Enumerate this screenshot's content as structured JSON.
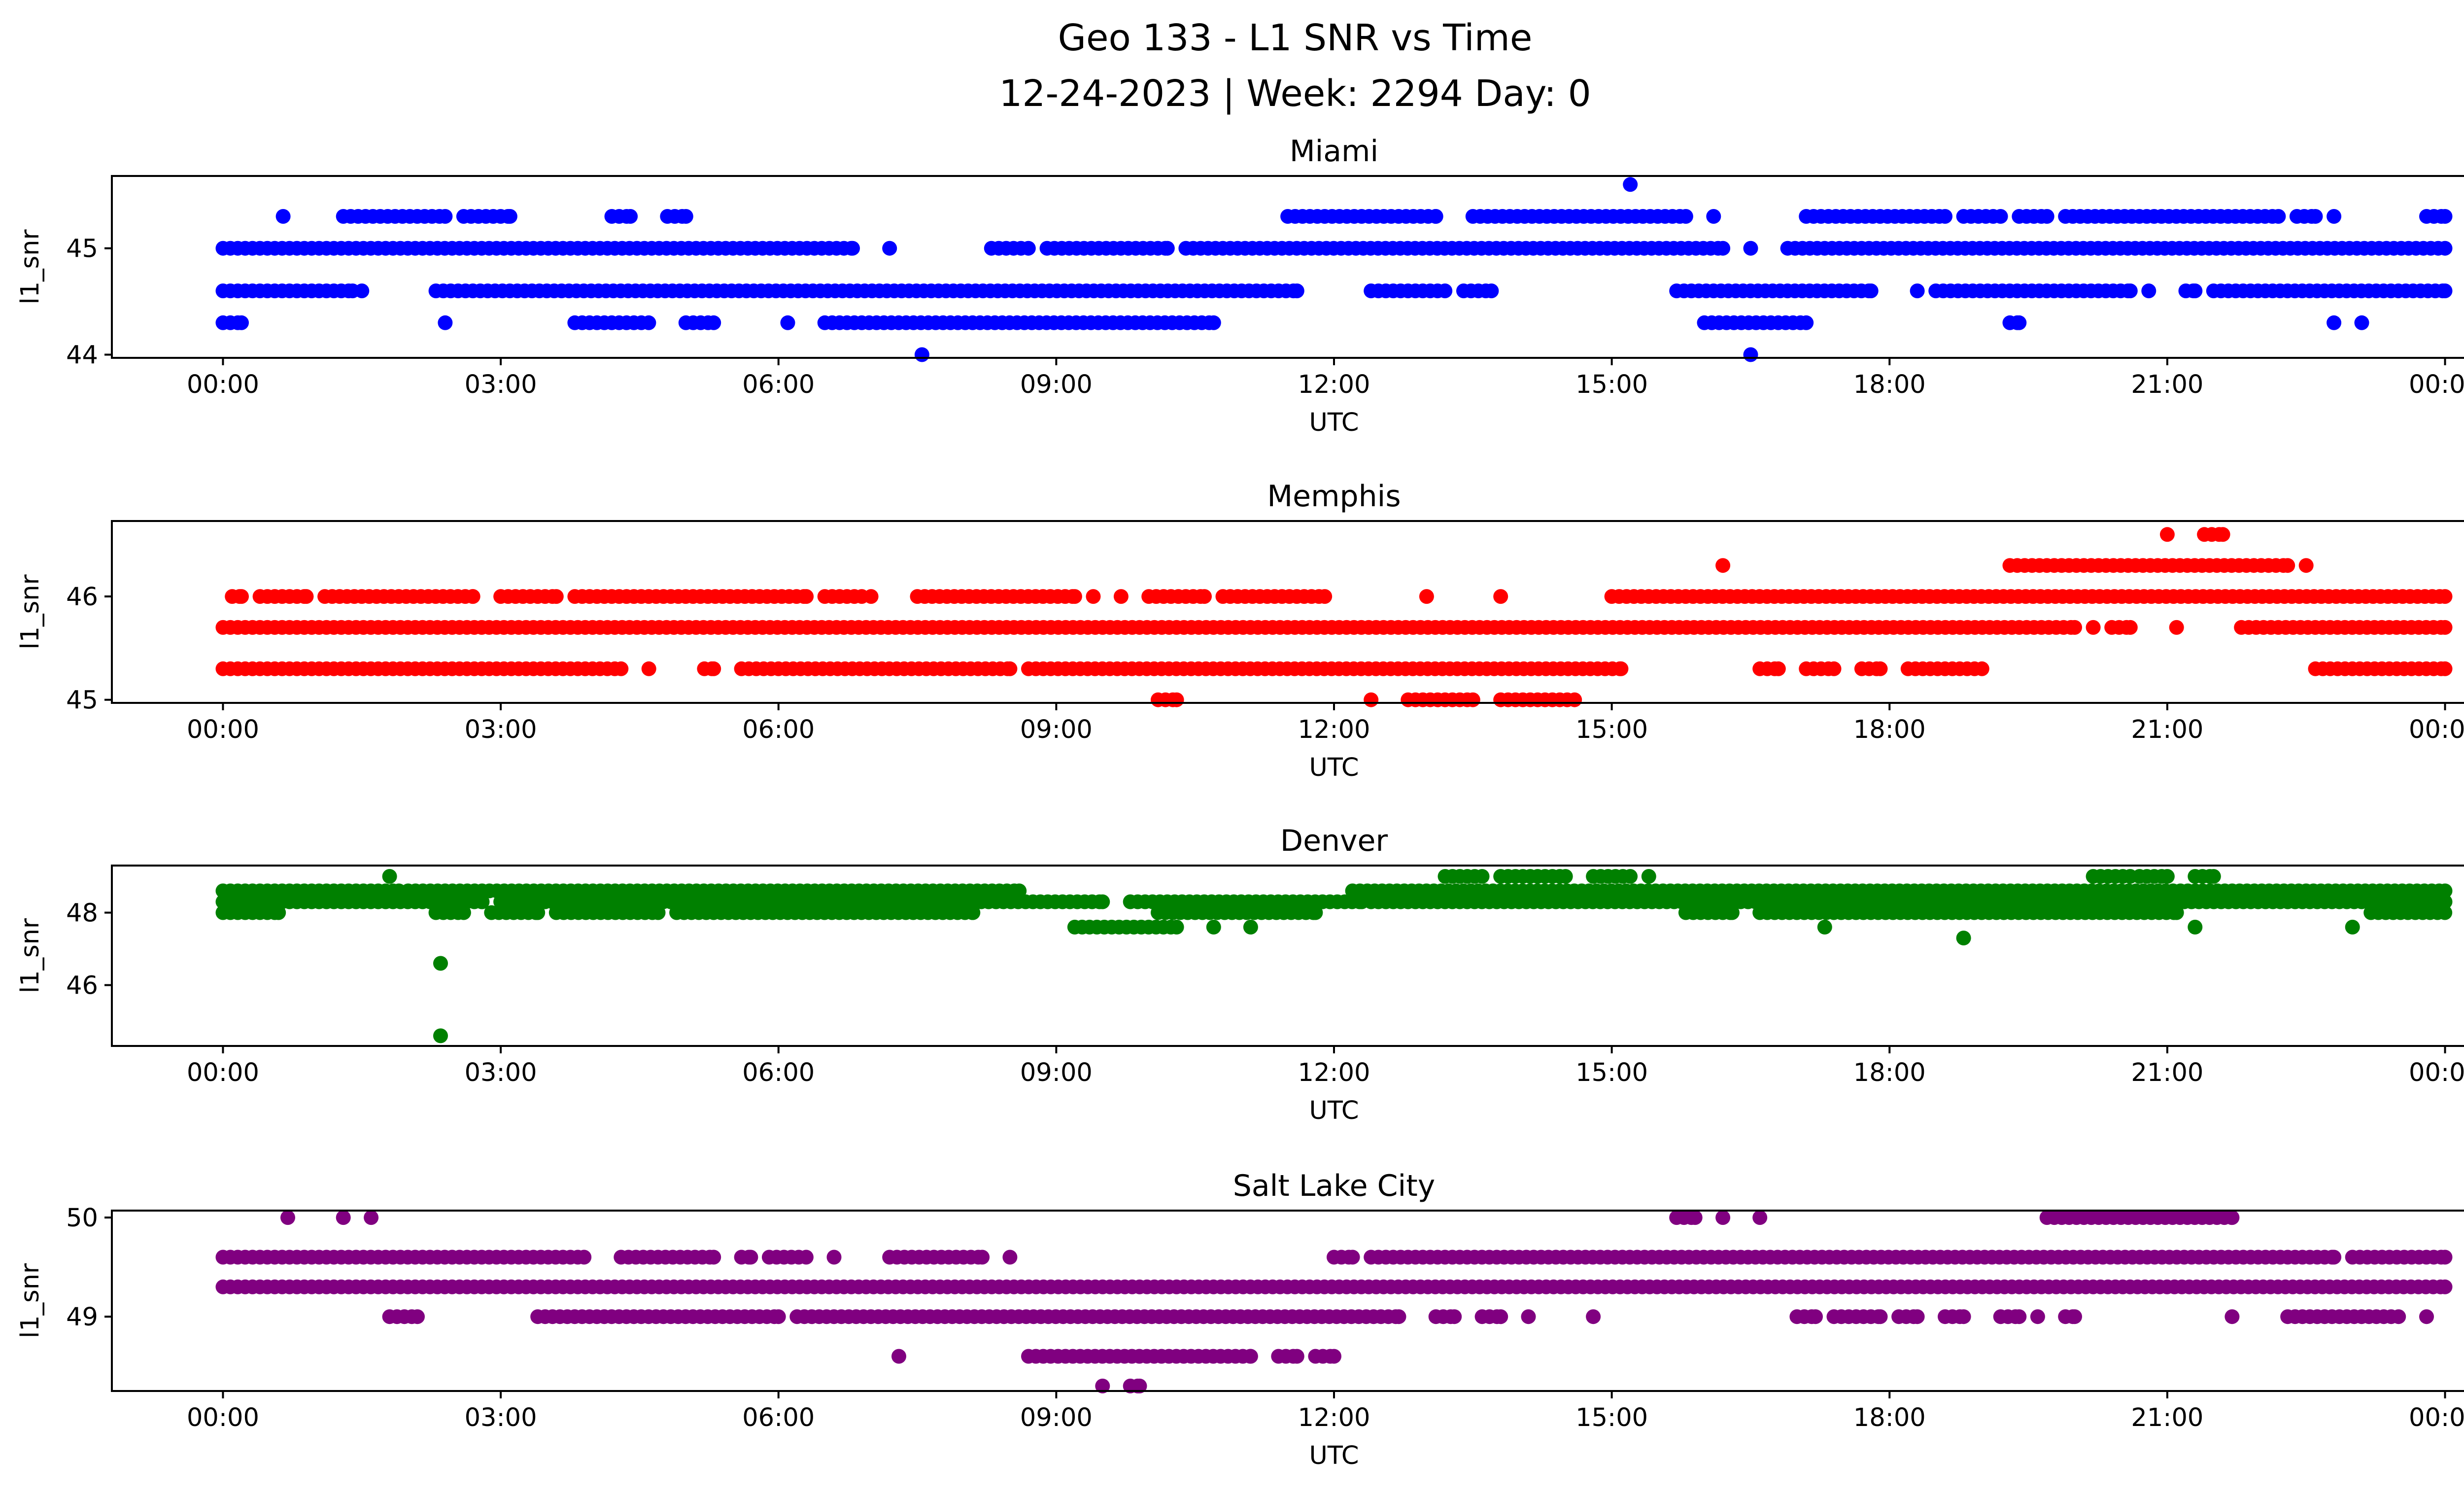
{
  "chart_data": {
    "type": "scatter",
    "title_line1": "Geo 133 - L1 SNR vs Time",
    "title_line2": "12-24-2023 | Week: 2294 Day: 0",
    "xlabel": "UTC",
    "ylabel": "l1_snr",
    "x_unit": "hours UTC",
    "xlim": [
      -1.2,
      25.2
    ],
    "x_ticks": [
      0,
      3,
      6,
      9,
      12,
      15,
      18,
      21,
      24
    ],
    "x_tick_labels": [
      "00:00",
      "03:00",
      "06:00",
      "09:00",
      "12:00",
      "15:00",
      "18:00",
      "21:00",
      "00:00"
    ],
    "grid": false,
    "panels": [
      {
        "title": "Miami",
        "color": "#0000ff",
        "ylim": [
          43.97,
          45.68
        ],
        "y_ticks": [
          44,
          45
        ],
        "levels": [
          {
            "y": 45.6,
            "segments": [
              [
                15.2,
                15.2
              ]
            ]
          },
          {
            "y": 45.3,
            "segments": [
              [
                0.65,
                0.65
              ],
              [
                1.3,
                2.4
              ],
              [
                2.6,
                3.1
              ],
              [
                4.2,
                4.4
              ],
              [
                4.8,
                5.0
              ],
              [
                11.5,
                13.1
              ],
              [
                13.5,
                15.8
              ],
              [
                16.1,
                16.1
              ],
              [
                17.1,
                18.6
              ],
              [
                18.8,
                19.2
              ],
              [
                19.4,
                19.7
              ],
              [
                19.9,
                22.2
              ],
              [
                22.4,
                22.6
              ],
              [
                22.8,
                22.8
              ],
              [
                23.8,
                24.0
              ]
            ]
          },
          {
            "y": 45.0,
            "segments": [
              [
                0.0,
                6.8
              ],
              [
                7.2,
                7.2
              ],
              [
                8.3,
                8.7
              ],
              [
                8.9,
                10.2
              ],
              [
                10.4,
                16.2
              ],
              [
                16.5,
                16.5
              ],
              [
                16.9,
                24.0
              ]
            ]
          },
          {
            "y": 44.6,
            "segments": [
              [
                0.0,
                1.4
              ],
              [
                1.5,
                1.5
              ],
              [
                2.3,
                11.6
              ],
              [
                12.4,
                13.2
              ],
              [
                13.4,
                13.7
              ],
              [
                15.7,
                17.8
              ],
              [
                18.3,
                18.3
              ],
              [
                18.5,
                20.6
              ],
              [
                20.8,
                20.8
              ],
              [
                21.2,
                21.3
              ],
              [
                21.5,
                24.0
              ]
            ]
          },
          {
            "y": 44.3,
            "segments": [
              [
                0.0,
                0.2
              ],
              [
                2.4,
                2.4
              ],
              [
                3.8,
                4.6
              ],
              [
                5.0,
                5.3
              ],
              [
                6.1,
                6.1
              ],
              [
                6.5,
                10.7
              ],
              [
                16.0,
                17.1
              ],
              [
                19.3,
                19.4
              ],
              [
                22.8,
                22.8
              ],
              [
                23.1,
                23.1
              ]
            ]
          },
          {
            "y": 44.0,
            "segments": [
              [
                7.55,
                7.55
              ],
              [
                16.5,
                16.5
              ]
            ]
          }
        ]
      },
      {
        "title": "Memphis",
        "color": "#ff0000",
        "ylim": [
          44.97,
          46.73
        ],
        "y_ticks": [
          45,
          46
        ],
        "levels": [
          {
            "y": 46.6,
            "segments": [
              [
                21.0,
                21.0
              ],
              [
                21.4,
                21.6
              ]
            ]
          },
          {
            "y": 46.3,
            "segments": [
              [
                16.2,
                16.2
              ],
              [
                19.3,
                22.3
              ],
              [
                22.5,
                22.5
              ]
            ]
          },
          {
            "y": 46.0,
            "segments": [
              [
                0.1,
                0.2
              ],
              [
                0.4,
                0.9
              ],
              [
                1.1,
                2.7
              ],
              [
                3.0,
                3.6
              ],
              [
                3.8,
                6.3
              ],
              [
                6.5,
                6.9
              ],
              [
                7.0,
                7.0
              ],
              [
                7.5,
                9.2
              ],
              [
                9.4,
                9.4
              ],
              [
                9.7,
                9.7
              ],
              [
                10.0,
                10.6
              ],
              [
                10.8,
                11.9
              ],
              [
                13.0,
                13.0
              ],
              [
                13.8,
                13.8
              ],
              [
                15.0,
                24.0
              ]
            ]
          },
          {
            "y": 45.7,
            "segments": [
              [
                0.0,
                20.0
              ],
              [
                20.2,
                20.2
              ],
              [
                20.4,
                20.6
              ],
              [
                21.1,
                21.1
              ],
              [
                21.8,
                24.0
              ]
            ]
          },
          {
            "y": 45.3,
            "segments": [
              [
                0.0,
                4.3
              ],
              [
                4.6,
                4.6
              ],
              [
                5.2,
                5.3
              ],
              [
                5.6,
                8.5
              ],
              [
                8.7,
                15.1
              ],
              [
                16.6,
                16.8
              ],
              [
                17.1,
                17.4
              ],
              [
                17.7,
                17.9
              ],
              [
                18.2,
                19.0
              ],
              [
                22.6,
                24.0
              ]
            ]
          },
          {
            "y": 45.0,
            "segments": [
              [
                10.1,
                10.3
              ],
              [
                12.4,
                12.4
              ],
              [
                12.8,
                13.5
              ],
              [
                13.8,
                14.6
              ]
            ]
          }
        ]
      },
      {
        "title": "Denver",
        "color": "#008000",
        "ylim": [
          44.32,
          49.3
        ],
        "y_ticks": [
          46,
          48
        ],
        "levels": [
          {
            "y": 49.0,
            "segments": [
              [
                1.8,
                1.8
              ],
              [
                13.2,
                13.6
              ],
              [
                13.8,
                14.5
              ],
              [
                14.8,
                15.2
              ],
              [
                15.4,
                15.4
              ],
              [
                20.2,
                20.6
              ],
              [
                20.7,
                21.0
              ],
              [
                21.3,
                21.5
              ]
            ]
          },
          {
            "y": 48.6,
            "segments": [
              [
                0.0,
                1.9
              ],
              [
                2.0,
                8.6
              ],
              [
                12.2,
                24.0
              ]
            ]
          },
          {
            "y": 48.3,
            "segments": [
              [
                0.0,
                2.8
              ],
              [
                3.0,
                9.5
              ],
              [
                9.8,
                12.3
              ],
              [
                12.4,
                24.0
              ]
            ]
          },
          {
            "y": 48.0,
            "segments": [
              [
                0.0,
                0.6
              ],
              [
                2.3,
                2.6
              ],
              [
                2.9,
                3.4
              ],
              [
                3.6,
                4.7
              ],
              [
                4.9,
                8.1
              ],
              [
                10.1,
                11.8
              ],
              [
                15.8,
                16.3
              ],
              [
                16.6,
                21.1
              ],
              [
                23.2,
                24.0
              ]
            ]
          },
          {
            "y": 47.6,
            "segments": [
              [
                9.2,
                10.3
              ],
              [
                10.7,
                10.7
              ],
              [
                11.1,
                11.1
              ],
              [
                17.3,
                17.3
              ],
              [
                21.3,
                21.3
              ],
              [
                23.0,
                23.0
              ]
            ]
          },
          {
            "y": 47.3,
            "segments": [
              [
                18.8,
                18.8
              ]
            ]
          },
          {
            "y": 46.6,
            "segments": [
              [
                2.35,
                2.35
              ]
            ]
          },
          {
            "y": 44.6,
            "segments": [
              [
                2.35,
                2.35
              ]
            ]
          }
        ]
      },
      {
        "title": "Salt Lake City",
        "color": "#800080",
        "ylim": [
          48.25,
          50.07
        ],
        "y_ticks": [
          49,
          50
        ],
        "levels": [
          {
            "y": 50.0,
            "segments": [
              [
                0.7,
                0.7
              ],
              [
                1.3,
                1.3
              ],
              [
                1.6,
                1.6
              ],
              [
                15.7,
                15.9
              ],
              [
                16.2,
                16.2
              ],
              [
                16.6,
                16.6
              ],
              [
                19.7,
                21.7
              ]
            ]
          },
          {
            "y": 49.6,
            "segments": [
              [
                0.0,
                3.9
              ],
              [
                4.3,
                5.3
              ],
              [
                5.6,
                5.7
              ],
              [
                5.9,
                6.3
              ],
              [
                6.6,
                6.6
              ],
              [
                7.2,
                8.2
              ],
              [
                8.5,
                8.5
              ],
              [
                12.0,
                12.2
              ],
              [
                12.4,
                22.8
              ],
              [
                23.0,
                24.0
              ]
            ]
          },
          {
            "y": 49.3,
            "segments": [
              [
                0.0,
                24.0
              ]
            ]
          },
          {
            "y": 49.0,
            "segments": [
              [
                1.8,
                2.1
              ],
              [
                3.4,
                6.0
              ],
              [
                6.2,
                12.7
              ],
              [
                13.1,
                13.3
              ],
              [
                13.6,
                13.8
              ],
              [
                14.1,
                14.1
              ],
              [
                14.8,
                14.8
              ],
              [
                17.0,
                17.2
              ],
              [
                17.4,
                17.9
              ],
              [
                18.1,
                18.3
              ],
              [
                18.6,
                18.8
              ],
              [
                19.2,
                19.4
              ],
              [
                19.6,
                19.6
              ],
              [
                19.9,
                20.0
              ],
              [
                21.7,
                21.7
              ],
              [
                22.3,
                23.5
              ],
              [
                23.8,
                23.8
              ]
            ]
          },
          {
            "y": 48.6,
            "segments": [
              [
                7.3,
                7.3
              ],
              [
                8.7,
                11.1
              ],
              [
                11.4,
                11.6
              ],
              [
                11.8,
                12.0
              ]
            ]
          },
          {
            "y": 48.3,
            "segments": [
              [
                9.5,
                9.5
              ],
              [
                9.8,
                9.9
              ]
            ]
          }
        ]
      }
    ]
  }
}
